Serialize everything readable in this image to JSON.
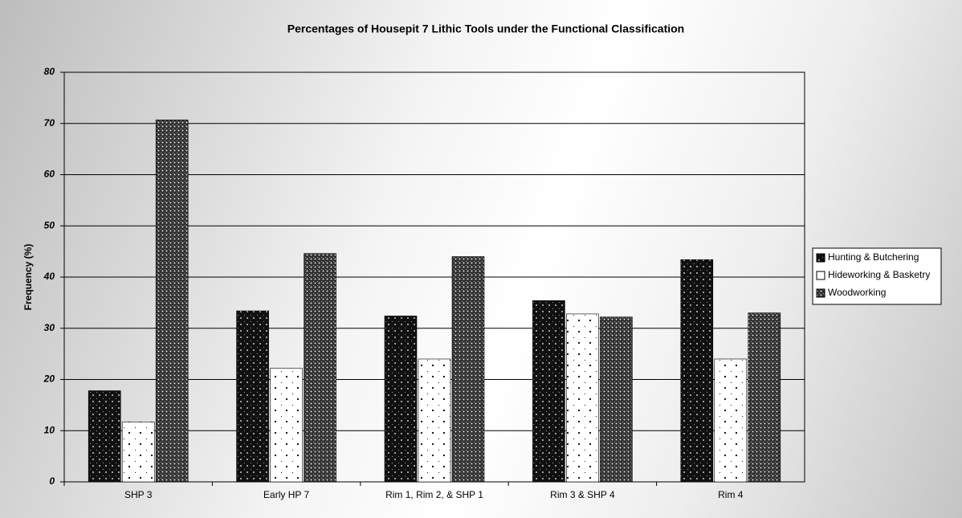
{
  "chart_data": {
    "type": "bar",
    "title": "Percentages of Housepit 7 Lithic Tools under the Functional Classification",
    "y_label": "Frequency (%)",
    "categories": [
      "SHP 3",
      "Early HP 7",
      "Rim 1, Rim 2, &  SHP 1",
      "Rim 3 & SHP 4",
      "Rim 4"
    ],
    "series": [
      {
        "name": "Hunting & Butchering",
        "color": "#111111",
        "values": [
          17.8,
          33.4,
          32.4,
          35.4,
          43.4
        ]
      },
      {
        "name": "Hideworking & Basketry",
        "color": "#ffffff",
        "values": [
          11.7,
          22.2,
          24,
          32.8,
          24
        ]
      },
      {
        "name": "Woodworking",
        "color": "#333333",
        "values": [
          70.7,
          44.6,
          44,
          32.2,
          33
        ]
      }
    ],
    "ylim": [
      0,
      80
    ],
    "yticks": [
      0,
      10,
      20,
      30,
      40,
      50,
      60,
      70,
      80
    ],
    "grid": true,
    "legend": "right"
  }
}
